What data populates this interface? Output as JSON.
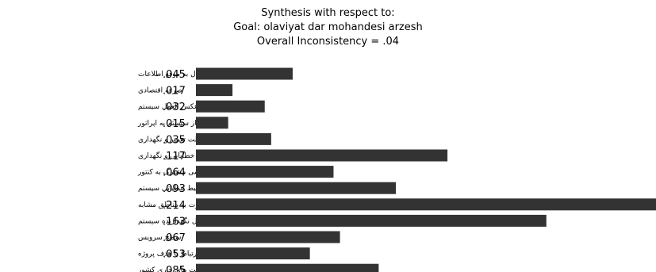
{
  "header": {
    "title": "Synthesis with respect to:",
    "goal": "Goal: olaviyat dar mohandesi arzesh",
    "inconsistency": "Overall Inconsistency = .04"
  },
  "chart_data": {
    "type": "bar",
    "orientation": "horizontal",
    "categories": [
      "انتقال به موقع اطلاعات",
      "صرفه اقتصادی",
      "زمان عکس العمل سیستم",
      "نیاز سیستم به اپراتور",
      "سهولت تعمیر و نگهداری",
      "انواع تجهیزات خطایابی و نگهداری",
      "عدم دسترسی مشترک به کنتور",
      "محیط عملیاتی سیستم",
      "قابلیت تعمیم طرح پایلوت به مناطق مشابه",
      "سطح مهارت پرسنل نگهدارنده سیستم",
      "سطح سرویس",
      "ارتباط با هدف پروژه",
      "ارتباط با سیاست های جاری کشور"
    ],
    "value_labels": [
      ".045",
      ".017",
      ".032",
      ".015",
      ".035",
      ".117",
      ".064",
      ".093",
      ".214",
      ".163",
      ".067",
      ".053",
      ".085"
    ],
    "values": [
      0.045,
      0.017,
      0.032,
      0.015,
      0.035,
      0.117,
      0.064,
      0.093,
      0.214,
      0.163,
      0.067,
      0.053,
      0.085
    ],
    "bar_color": "#333333",
    "grid": false
  }
}
